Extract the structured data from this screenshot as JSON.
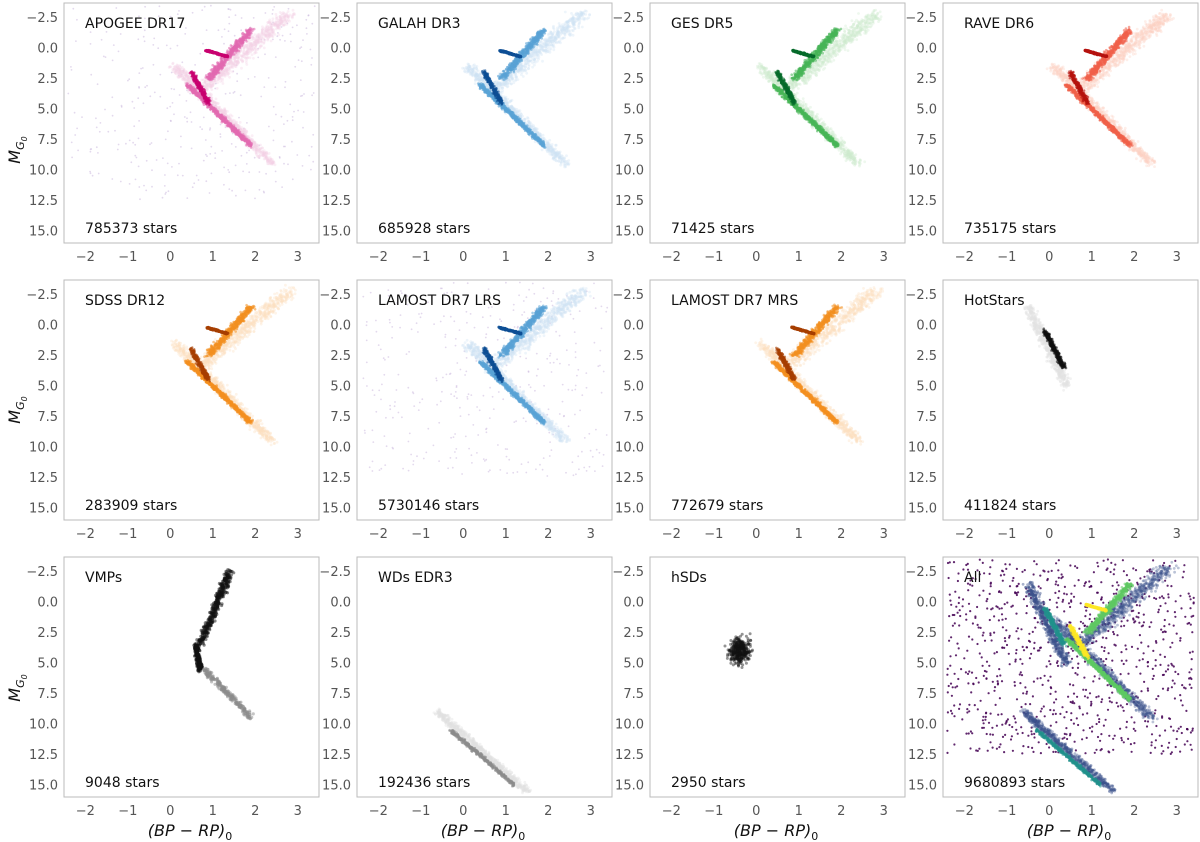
{
  "chart_data": [
    {
      "type": "scatter",
      "title": "APOGEE DR17",
      "count_label": "785373 stars",
      "colormap": "pink",
      "xlim": [
        -2.5,
        3.5
      ],
      "ylim": [
        16,
        -3.7
      ],
      "xticks": [
        "−2",
        "−1",
        "0",
        "1",
        "2",
        "3"
      ],
      "yticks": [
        "−2.5",
        "0.0",
        "2.5",
        "5.0",
        "7.5",
        "10.0",
        "12.5",
        "15.0"
      ],
      "features": {
        "giant_branch": true,
        "main_sequence": true,
        "red_clump": true,
        "halo": true,
        "white_dwarfs": false,
        "blob": false
      }
    },
    {
      "type": "scatter",
      "title": "GALAH DR3",
      "count_label": "685928 stars",
      "colormap": "blue",
      "xlim": [
        -2.5,
        3.5
      ],
      "ylim": [
        16,
        -3.7
      ],
      "xticks": [
        "−2",
        "−1",
        "0",
        "1",
        "2",
        "3"
      ],
      "yticks": [
        "−2.5",
        "0.0",
        "2.5",
        "5.0",
        "7.5",
        "10.0",
        "12.5",
        "15.0"
      ],
      "features": {
        "giant_branch": true,
        "main_sequence": true,
        "red_clump": true,
        "halo": false,
        "white_dwarfs": false,
        "blob": false
      }
    },
    {
      "type": "scatter",
      "title": "GES DR5",
      "count_label": "71425 stars",
      "colormap": "green",
      "xlim": [
        -2.5,
        3.5
      ],
      "ylim": [
        16,
        -3.7
      ],
      "xticks": [
        "−2",
        "−1",
        "0",
        "1",
        "2",
        "3"
      ],
      "yticks": [
        "−2.5",
        "0.0",
        "2.5",
        "5.0",
        "7.5",
        "10.0",
        "12.5",
        "15.0"
      ],
      "features": {
        "giant_branch": true,
        "main_sequence": true,
        "red_clump": true,
        "halo": false,
        "white_dwarfs": false,
        "blob": false
      }
    },
    {
      "type": "scatter",
      "title": "RAVE DR6",
      "count_label": "735175 stars",
      "colormap": "red",
      "xlim": [
        -2.5,
        3.5
      ],
      "ylim": [
        16,
        -3.7
      ],
      "xticks": [
        "−2",
        "−1",
        "0",
        "1",
        "2",
        "3"
      ],
      "yticks": [
        "−2.5",
        "0.0",
        "2.5",
        "5.0",
        "7.5",
        "10.0",
        "12.5",
        "15.0"
      ],
      "features": {
        "giant_branch": true,
        "main_sequence": true,
        "red_clump": true,
        "halo": false,
        "white_dwarfs": false,
        "blob": false
      }
    },
    {
      "type": "scatter",
      "title": "SDSS DR12",
      "count_label": "283909 stars",
      "colormap": "orange",
      "xlim": [
        -2.5,
        3.5
      ],
      "ylim": [
        16,
        -3.7
      ],
      "xticks": [
        "−2",
        "−1",
        "0",
        "1",
        "2",
        "3"
      ],
      "yticks": [
        "−2.5",
        "0.0",
        "2.5",
        "5.0",
        "7.5",
        "10.0",
        "12.5",
        "15.0"
      ],
      "features": {
        "giant_branch": true,
        "main_sequence": true,
        "red_clump": true,
        "halo": false,
        "white_dwarfs": false,
        "blob": false
      }
    },
    {
      "type": "scatter",
      "title": "LAMOST DR7 LRS",
      "count_label": "5730146 stars",
      "colormap": "blue",
      "xlim": [
        -2.5,
        3.5
      ],
      "ylim": [
        16,
        -3.7
      ],
      "xticks": [
        "−2",
        "−1",
        "0",
        "1",
        "2",
        "3"
      ],
      "yticks": [
        "−2.5",
        "0.0",
        "2.5",
        "5.0",
        "7.5",
        "10.0",
        "12.5",
        "15.0"
      ],
      "features": {
        "giant_branch": true,
        "main_sequence": true,
        "red_clump": true,
        "halo": true,
        "white_dwarfs": false,
        "blob": false
      }
    },
    {
      "type": "scatter",
      "title": "LAMOST DR7 MRS",
      "count_label": "772679 stars",
      "colormap": "orange",
      "xlim": [
        -2.5,
        3.5
      ],
      "ylim": [
        16,
        -3.7
      ],
      "xticks": [
        "−2",
        "−1",
        "0",
        "1",
        "2",
        "3"
      ],
      "yticks": [
        "−2.5",
        "0.0",
        "2.5",
        "5.0",
        "7.5",
        "10.0",
        "12.5",
        "15.0"
      ],
      "features": {
        "giant_branch": true,
        "main_sequence": true,
        "red_clump": true,
        "halo": false,
        "white_dwarfs": false,
        "blob": false
      }
    },
    {
      "type": "scatter",
      "title": "HotStars",
      "count_label": "411824 stars",
      "colormap": "gray",
      "xlim": [
        -2.5,
        3.5
      ],
      "ylim": [
        16,
        -3.7
      ],
      "xticks": [
        "−2",
        "−1",
        "0",
        "1",
        "2",
        "3"
      ],
      "yticks": [
        "−2.5",
        "0.0",
        "2.5",
        "5.0",
        "7.5",
        "10.0",
        "12.5",
        "15.0"
      ],
      "features": {
        "giant_branch": false,
        "main_sequence": false,
        "red_clump": false,
        "halo": false,
        "white_dwarfs": false,
        "blob": false,
        "hot_sequence": true
      }
    },
    {
      "type": "scatter",
      "title": "VMPs",
      "count_label": "9048 stars",
      "colormap": "gray",
      "xlim": [
        -2.5,
        3.5
      ],
      "ylim": [
        16,
        -3.7
      ],
      "xticks": [
        "−2",
        "−1",
        "0",
        "1",
        "2",
        "3"
      ],
      "yticks": [
        "−2.5",
        "0.0",
        "2.5",
        "5.0",
        "7.5",
        "10.0",
        "12.5",
        "15.0"
      ],
      "features": {
        "giant_branch": false,
        "main_sequence": false,
        "red_clump": false,
        "halo": false,
        "white_dwarfs": false,
        "blob": false,
        "vmp_track": true
      }
    },
    {
      "type": "scatter",
      "title": "WDs EDR3",
      "count_label": "192436 stars",
      "colormap": "gray",
      "xlim": [
        -2.5,
        3.5
      ],
      "ylim": [
        16,
        -3.7
      ],
      "xticks": [
        "−2",
        "−1",
        "0",
        "1",
        "2",
        "3"
      ],
      "yticks": [
        "−2.5",
        "0.0",
        "2.5",
        "5.0",
        "7.5",
        "10.0",
        "12.5",
        "15.0"
      ],
      "features": {
        "giant_branch": false,
        "main_sequence": false,
        "red_clump": false,
        "halo": false,
        "white_dwarfs": true,
        "blob": false
      }
    },
    {
      "type": "scatter",
      "title": "hSDs",
      "count_label": "2950 stars",
      "colormap": "gray",
      "xlim": [
        -2.5,
        3.5
      ],
      "ylim": [
        16,
        -3.7
      ],
      "xticks": [
        "−2",
        "−1",
        "0",
        "1",
        "2",
        "3"
      ],
      "yticks": [
        "−2.5",
        "0.0",
        "2.5",
        "5.0",
        "7.5",
        "10.0",
        "12.5",
        "15.0"
      ],
      "features": {
        "giant_branch": false,
        "main_sequence": false,
        "red_clump": false,
        "halo": false,
        "white_dwarfs": false,
        "blob": true
      }
    },
    {
      "type": "heatmap",
      "title": "All",
      "count_label": "9680893 stars",
      "colormap": "viridis",
      "xlim": [
        -2.5,
        3.5
      ],
      "ylim": [
        16,
        -3.7
      ],
      "xticks": [
        "−2",
        "−1",
        "0",
        "1",
        "2",
        "3"
      ],
      "yticks": [
        "−2.5",
        "0.0",
        "2.5",
        "5.0",
        "7.5",
        "10.0",
        "12.5",
        "15.0"
      ],
      "features": {
        "giant_branch": true,
        "main_sequence": true,
        "red_clump": true,
        "halo": true,
        "white_dwarfs": true,
        "blob": false,
        "hot_sequence": true
      }
    }
  ],
  "axis_labels": {
    "ylabel": "M_G0",
    "xlabel": "(BP − RP)0"
  },
  "colormaps": {
    "pink": [
      "#f3d0e6",
      "#e26ab1",
      "#c8006f"
    ],
    "blue": [
      "#cfe3f3",
      "#5aa3d6",
      "#0d4f95"
    ],
    "green": [
      "#cfeccf",
      "#47b557",
      "#056a2a"
    ],
    "red": [
      "#fbd2c4",
      "#f0614a",
      "#b5120e"
    ],
    "orange": [
      "#fde0bf",
      "#f39020",
      "#a63e00"
    ],
    "gray": [
      "#e2e2e2",
      "#8c8c8c",
      "#111111"
    ],
    "viridis": [
      "#440154",
      "#3b528b",
      "#21918c",
      "#5ec962",
      "#fde725"
    ]
  },
  "colors": {
    "halo_purple": "#c8b4dc",
    "axis_frame": "#bbbbbb"
  }
}
